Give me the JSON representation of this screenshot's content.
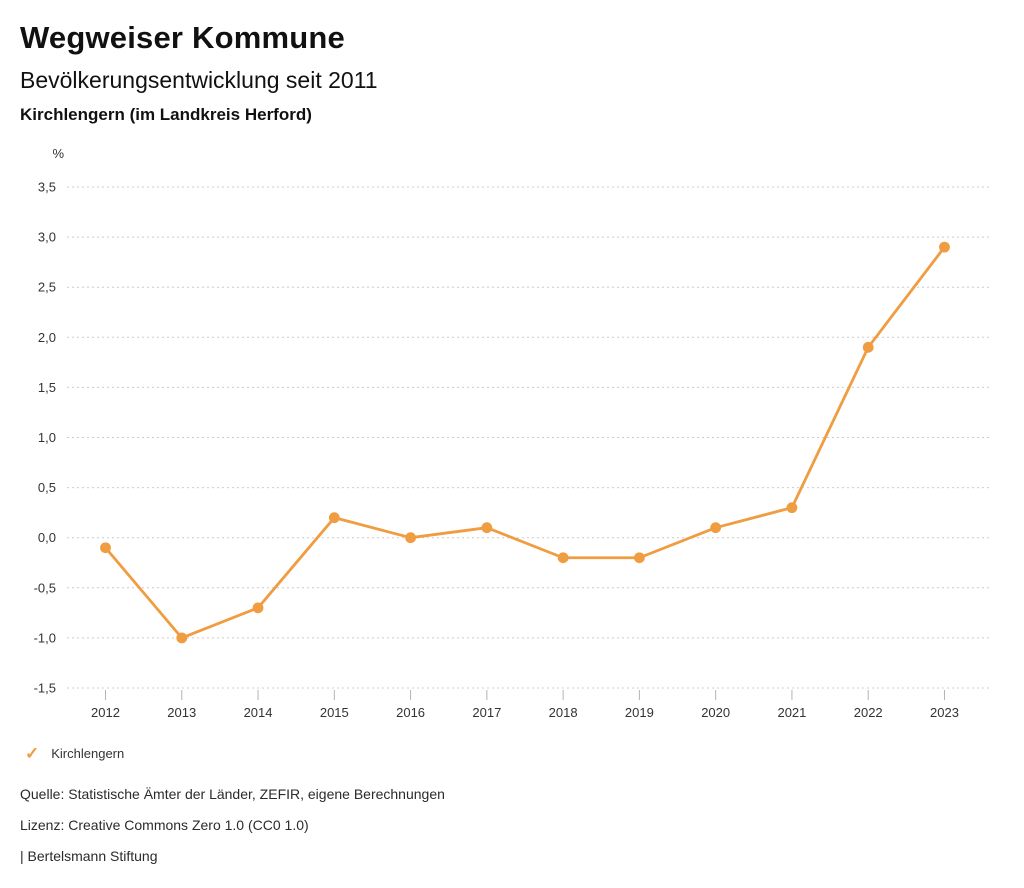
{
  "header": {
    "title": "Wegweiser Kommune",
    "subtitle": "Bevölkerungsentwicklung seit 2011",
    "region": "Kirchlengern (im Landkreis Herford)"
  },
  "chart_data": {
    "type": "line",
    "title": "Bevölkerungsentwicklung seit 2011",
    "subtitle": "Kirchlengern (im Landkreis Herford)",
    "unit": "%",
    "categories": [
      "2012",
      "2013",
      "2014",
      "2015",
      "2016",
      "2017",
      "2018",
      "2019",
      "2020",
      "2021",
      "2022",
      "2023"
    ],
    "series": [
      {
        "name": "Kirchlengern",
        "color": "#F09C40",
        "values": [
          -0.1,
          -1.0,
          -0.7,
          0.2,
          0.0,
          0.1,
          -0.2,
          -0.2,
          0.1,
          0.3,
          1.9,
          2.9
        ]
      }
    ],
    "ylim": [
      -1.5,
      3.5
    ],
    "ytick_step": 0.5,
    "decimal_separator": ",",
    "grid": "horizontal-dotted",
    "legend_position": "bottom-left",
    "xlabel": "",
    "ylabel": "%"
  },
  "legend": {
    "items": [
      {
        "label": "Kirchlengern",
        "marker": "check",
        "color": "#F09C40"
      }
    ]
  },
  "footer": {
    "source": "Quelle: Statistische Ämter der Länder, ZEFIR, eigene Berechnungen",
    "license": "Lizenz: Creative Commons Zero 1.0 (CC0 1.0)",
    "attribution": "| Bertelsmann Stiftung"
  },
  "colors": {
    "accent": "#F09C40",
    "grid": "#cccccc",
    "tick": "#b3b3b3",
    "axis_text": "#333333",
    "background": "#ffffff"
  }
}
